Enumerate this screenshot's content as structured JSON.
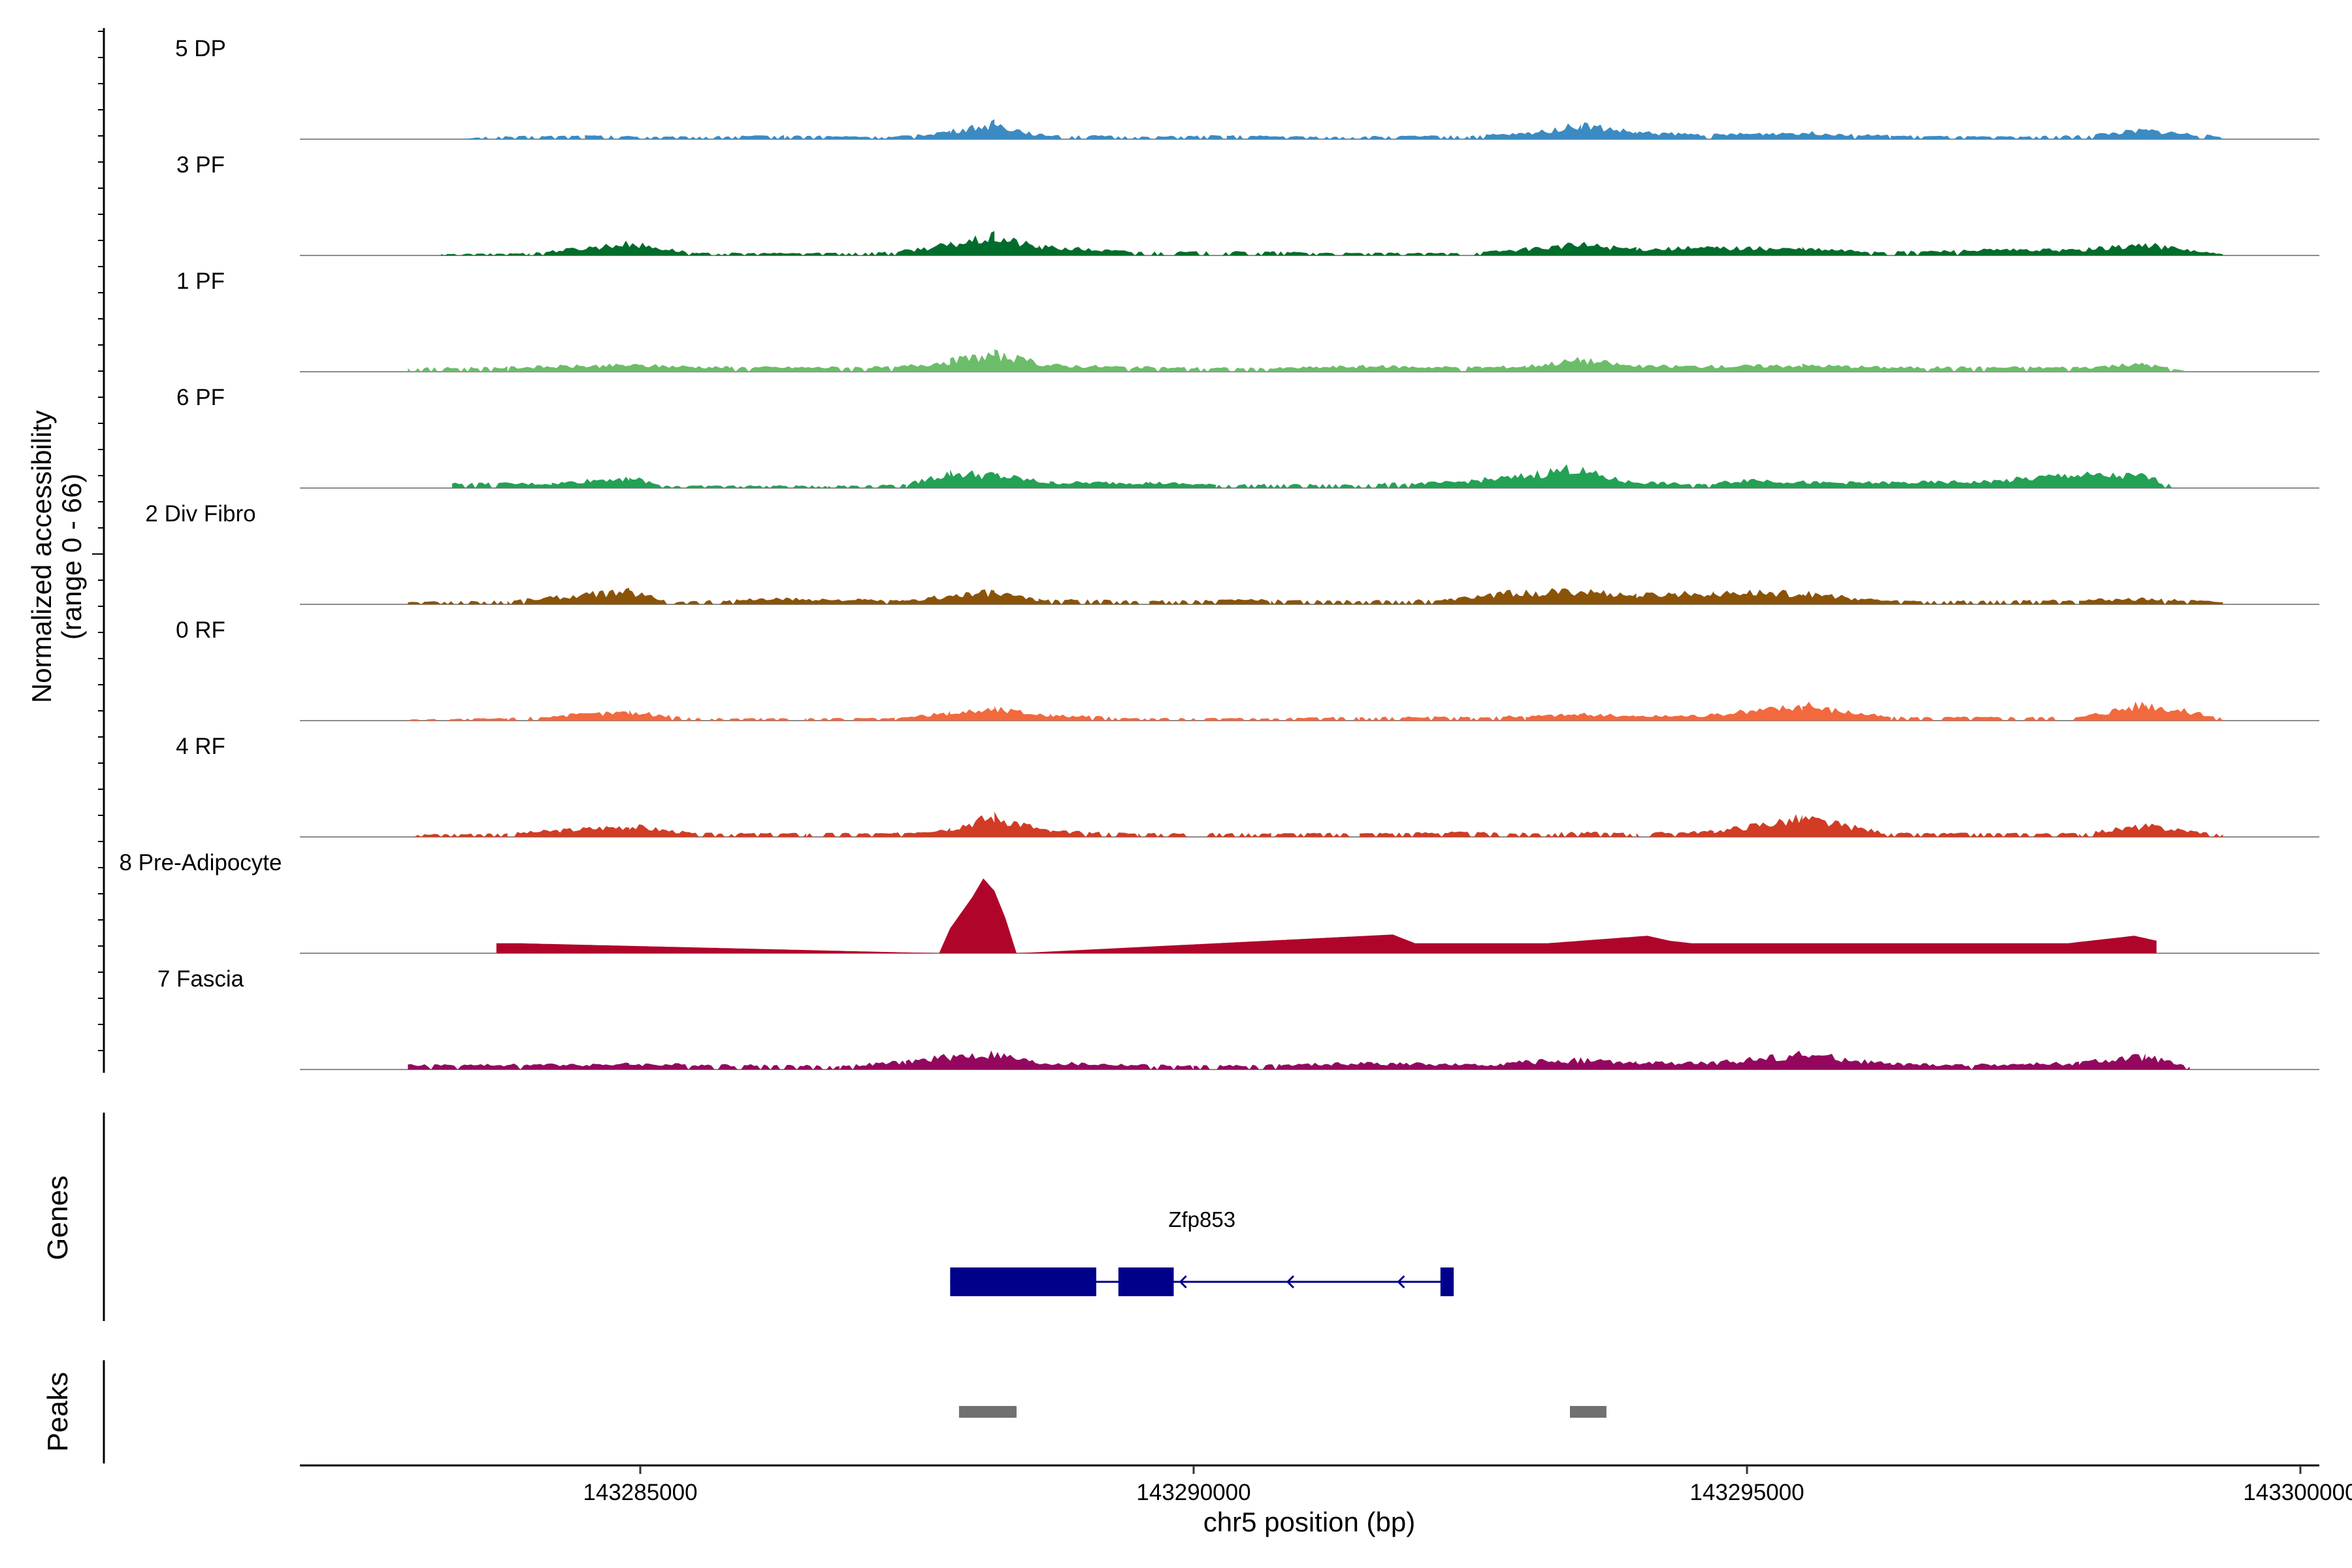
{
  "chart_data": {
    "type": "area",
    "title": "",
    "chromosome": "chr5",
    "xlabel": "chr5 position (bp)",
    "ylabel": "Normalized accessibility",
    "ylabel_range": "(range 0 - 66)",
    "y_range": [
      0,
      66
    ],
    "xlim": [
      143282000,
      143300200
    ],
    "x_ticks": [
      143285000,
      143290000,
      143295000,
      143300000
    ],
    "x_tick_labels": [
      "143285000",
      "143290000",
      "143295000",
      "143300000"
    ],
    "panel_labels": {
      "genes": "Genes",
      "peaks": "Peaks"
    },
    "series": [
      {
        "name": "5 DP",
        "color": "#3b8bc2",
        "points": [
          [
            143283400,
            0
          ],
          [
            143283600,
            2
          ],
          [
            143284500,
            3
          ],
          [
            143285300,
            2
          ],
          [
            143286300,
            3
          ],
          [
            143287300,
            2
          ],
          [
            143287800,
            7
          ],
          [
            143288200,
            14
          ],
          [
            143288600,
            4
          ],
          [
            143289500,
            2
          ],
          [
            143290300,
            3
          ],
          [
            143291200,
            2
          ],
          [
            143292500,
            3
          ],
          [
            143293000,
            5
          ],
          [
            143293500,
            13
          ],
          [
            143294000,
            6
          ],
          [
            143294700,
            4
          ],
          [
            143295500,
            6
          ],
          [
            143296300,
            3
          ],
          [
            143297200,
            2
          ],
          [
            143298000,
            3
          ],
          [
            143298600,
            8
          ],
          [
            143299300,
            2
          ]
        ]
      },
      {
        "name": "3 PF",
        "color": "#006d2c",
        "points": [
          [
            143283200,
            1
          ],
          [
            143284000,
            2
          ],
          [
            143284900,
            11
          ],
          [
            143285500,
            2
          ],
          [
            143286500,
            2
          ],
          [
            143287300,
            3
          ],
          [
            143287800,
            10
          ],
          [
            143288200,
            17
          ],
          [
            143288600,
            8
          ],
          [
            143289500,
            3
          ],
          [
            143290700,
            3
          ],
          [
            143291400,
            2
          ],
          [
            143292500,
            2
          ],
          [
            143293000,
            6
          ],
          [
            143293500,
            10
          ],
          [
            143294000,
            6
          ],
          [
            143294700,
            7
          ],
          [
            143295500,
            6
          ],
          [
            143296300,
            3
          ],
          [
            143297200,
            5
          ],
          [
            143298000,
            5
          ],
          [
            143298600,
            10
          ],
          [
            143299300,
            1
          ]
        ]
      },
      {
        "name": "1 PF",
        "color": "#6cbd6a",
        "points": [
          [
            143282900,
            3
          ],
          [
            143283800,
            4
          ],
          [
            143284900,
            6
          ],
          [
            143285800,
            4
          ],
          [
            143286700,
            4
          ],
          [
            143287300,
            4
          ],
          [
            143287800,
            10
          ],
          [
            143288200,
            16
          ],
          [
            143288700,
            6
          ],
          [
            143289500,
            4
          ],
          [
            143290600,
            3
          ],
          [
            143291500,
            5
          ],
          [
            143292600,
            4
          ],
          [
            143293000,
            5
          ],
          [
            143293500,
            11
          ],
          [
            143294000,
            5
          ],
          [
            143294800,
            5
          ],
          [
            143295500,
            6
          ],
          [
            143296300,
            4
          ],
          [
            143297200,
            4
          ],
          [
            143298000,
            4
          ],
          [
            143298600,
            7
          ],
          [
            143299000,
            0
          ]
        ]
      },
      {
        "name": "6 PF",
        "color": "#23a154",
        "points": [
          [
            143283300,
            4
          ],
          [
            143284200,
            4
          ],
          [
            143284900,
            10
          ],
          [
            143285200,
            2
          ],
          [
            143286700,
            2
          ],
          [
            143287400,
            3
          ],
          [
            143287800,
            14
          ],
          [
            143288200,
            12
          ],
          [
            143288700,
            5
          ],
          [
            143289600,
            5
          ],
          [
            143290200,
            3
          ],
          [
            143291400,
            3
          ],
          [
            143292300,
            5
          ],
          [
            143292900,
            10
          ],
          [
            143293400,
            18
          ],
          [
            143293900,
            6
          ],
          [
            143294600,
            3
          ],
          [
            143295000,
            8
          ],
          [
            143295600,
            5
          ],
          [
            143296400,
            5
          ],
          [
            143297200,
            6
          ],
          [
            143297900,
            12
          ],
          [
            143298600,
            11
          ],
          [
            143298900,
            0
          ]
        ]
      },
      {
        "name": "2 Div Fibro",
        "color": "#8b5307",
        "points": [
          [
            143282900,
            2
          ],
          [
            143283800,
            3
          ],
          [
            143284900,
            12
          ],
          [
            143285300,
            2
          ],
          [
            143286200,
            5
          ],
          [
            143287000,
            4
          ],
          [
            143287400,
            3
          ],
          [
            143287800,
            8
          ],
          [
            143288200,
            11
          ],
          [
            143288600,
            4
          ],
          [
            143289600,
            3
          ],
          [
            143290700,
            4
          ],
          [
            143291500,
            3
          ],
          [
            143292300,
            4
          ],
          [
            143292800,
            10
          ],
          [
            143293500,
            12
          ],
          [
            143294000,
            8
          ],
          [
            143294700,
            11
          ],
          [
            143295500,
            10
          ],
          [
            143296300,
            3
          ],
          [
            143297200,
            3
          ],
          [
            143298000,
            4
          ],
          [
            143298600,
            5
          ],
          [
            143299300,
            2
          ]
        ]
      },
      {
        "name": "0 RF",
        "color": "#f2693e",
        "points": [
          [
            143282900,
            1
          ],
          [
            143283800,
            2
          ],
          [
            143284900,
            8
          ],
          [
            143285500,
            2
          ],
          [
            143286500,
            2
          ],
          [
            143287300,
            2
          ],
          [
            143287800,
            7
          ],
          [
            143288200,
            11
          ],
          [
            143288700,
            5
          ],
          [
            143289500,
            2
          ],
          [
            143290700,
            2
          ],
          [
            143291500,
            3
          ],
          [
            143292500,
            3
          ],
          [
            143293000,
            4
          ],
          [
            143293500,
            6
          ],
          [
            143294000,
            4
          ],
          [
            143294700,
            5
          ],
          [
            143295500,
            14
          ],
          [
            143296300,
            3
          ],
          [
            143297200,
            3
          ],
          [
            143298000,
            3
          ],
          [
            143298600,
            16
          ],
          [
            143299300,
            2
          ]
        ]
      },
      {
        "name": "4 RF",
        "color": "#d13c24",
        "points": [
          [
            143282900,
            2
          ],
          [
            143283800,
            3
          ],
          [
            143284900,
            10
          ],
          [
            143285500,
            3
          ],
          [
            143286500,
            3
          ],
          [
            143287300,
            3
          ],
          [
            143287800,
            8
          ],
          [
            143288200,
            19
          ],
          [
            143288700,
            5
          ],
          [
            143289500,
            3
          ],
          [
            143290700,
            3
          ],
          [
            143291500,
            3
          ],
          [
            143292300,
            4
          ],
          [
            143293000,
            3
          ],
          [
            143293500,
            4
          ],
          [
            143294000,
            3
          ],
          [
            143294700,
            5
          ],
          [
            143295500,
            17
          ],
          [
            143296300,
            3
          ],
          [
            143297200,
            3
          ],
          [
            143298000,
            3
          ],
          [
            143298600,
            10
          ],
          [
            143299300,
            2
          ]
        ]
      },
      {
        "name": "8 Pre-Adipocyte",
        "color": "#b0052a",
        "points": [
          [
            143283700,
            8
          ],
          [
            143283900,
            8
          ],
          [
            143287700,
            0
          ],
          [
            143287800,
            20
          ],
          [
            143288000,
            45
          ],
          [
            143288100,
            60
          ],
          [
            143288200,
            50
          ],
          [
            143288300,
            28
          ],
          [
            143288400,
            0
          ],
          [
            143291800,
            15
          ],
          [
            143292000,
            8
          ],
          [
            143293200,
            8
          ],
          [
            143294100,
            14
          ],
          [
            143294300,
            10
          ],
          [
            143294500,
            8
          ],
          [
            143295100,
            8
          ],
          [
            143295500,
            8
          ],
          [
            143297000,
            8
          ],
          [
            143297400,
            8
          ],
          [
            143297900,
            8
          ],
          [
            143298500,
            14
          ],
          [
            143298700,
            10
          ]
        ]
      },
      {
        "name": "7 Fascia",
        "color": "#93085e",
        "points": [
          [
            143282900,
            4
          ],
          [
            143283500,
            4
          ],
          [
            143284900,
            5
          ],
          [
            143286800,
            3
          ],
          [
            143287400,
            7
          ],
          [
            143287800,
            12
          ],
          [
            143288200,
            14
          ],
          [
            143288600,
            6
          ],
          [
            143290000,
            3
          ],
          [
            143290800,
            4
          ],
          [
            143291600,
            6
          ],
          [
            143292600,
            4
          ],
          [
            143293000,
            7
          ],
          [
            143293500,
            9
          ],
          [
            143294000,
            6
          ],
          [
            143294700,
            6
          ],
          [
            143295500,
            14
          ],
          [
            143296300,
            5
          ],
          [
            143297000,
            4
          ],
          [
            143297500,
            5
          ],
          [
            143298000,
            6
          ],
          [
            143298600,
            12
          ],
          [
            143299000,
            2
          ]
        ]
      }
    ],
    "genes": [
      {
        "name": "Zfp853",
        "strand": "-",
        "start": 143287800,
        "end": 143292350,
        "exons": [
          [
            143287800,
            143289120
          ],
          [
            143289320,
            143289820
          ],
          [
            143292230,
            143292350
          ]
        ]
      }
    ],
    "peaks": [
      [
        143287880,
        143288400
      ],
      [
        143293400,
        143293730
      ]
    ],
    "peak_color": "#707070",
    "gene_color": "#00008b"
  }
}
